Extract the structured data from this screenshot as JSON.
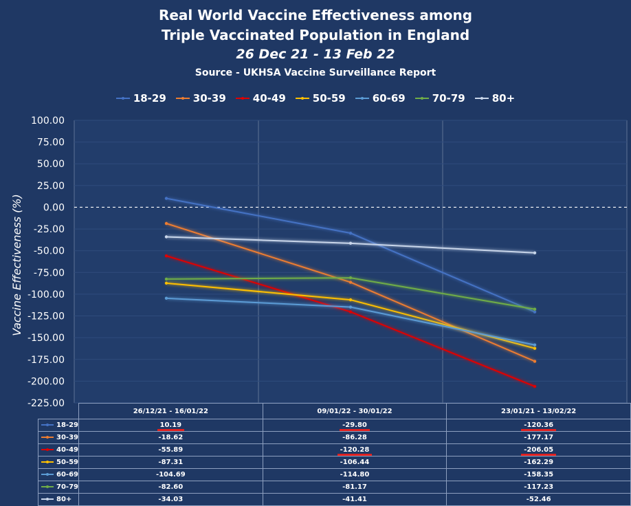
{
  "chart_data": {
    "type": "line",
    "title": "Real World Vaccine Effectiveness among Triple Vaccinated Population in England",
    "title_lines": [
      "Real World Vaccine Effectiveness among",
      "Triple Vaccinated Population in England"
    ],
    "subtitle": "26 Dec 21 - 13 Feb 22",
    "source": "Source - UKHSA Vaccine Surveillance Report",
    "xlabel": "",
    "ylabel": "Vaccine Effectiveness (%)",
    "ylim": [
      -225,
      100
    ],
    "yticks": [
      "100.00",
      "75.00",
      "50.00",
      "25.00",
      "0.00",
      "-25.00",
      "-50.00",
      "-75.00",
      "-100.00",
      "-125.00",
      "-150.00",
      "-175.00",
      "-200.00",
      "-225.00"
    ],
    "categories": [
      "26/12/21 - 16/01/22",
      "09/01/22 - 30/01/22",
      "23/01/21 - 13/02/22"
    ],
    "legend_position": "top",
    "grid": true,
    "series": [
      {
        "name": "18-29",
        "color": "#4472c4",
        "values": [
          10.19,
          -29.8,
          -120.36
        ],
        "display": [
          "10.19",
          "-29.80",
          "-120.36"
        ]
      },
      {
        "name": "30-39",
        "color": "#ed7d31",
        "values": [
          -18.62,
          -86.28,
          -177.17
        ],
        "display": [
          "-18.62",
          "-86.28",
          "-177.17"
        ]
      },
      {
        "name": "40-49",
        "color": "#e00000",
        "values": [
          -55.89,
          -120.28,
          -206.05
        ],
        "display": [
          "-55.89",
          "-120.28",
          "-206.05"
        ]
      },
      {
        "name": "50-59",
        "color": "#ffc000",
        "values": [
          -87.31,
          -106.44,
          -162.29
        ],
        "display": [
          "-87.31",
          "-106.44",
          "-162.29"
        ]
      },
      {
        "name": "60-69",
        "color": "#5b9bd5",
        "values": [
          -104.69,
          -114.8,
          -158.35
        ],
        "display": [
          "-104.69",
          "-114.80",
          "-158.35"
        ]
      },
      {
        "name": "70-79",
        "color": "#70ad47",
        "values": [
          -82.6,
          -81.17,
          -117.23
        ],
        "display": [
          "-82.60",
          "-81.17",
          "-117.23"
        ]
      },
      {
        "name": "80+",
        "color": "#c9d6ea",
        "values": [
          -34.03,
          -41.41,
          -52.46
        ],
        "display": [
          "-34.03",
          "-41.41",
          "-52.46"
        ]
      }
    ],
    "underlined_cells": {
      "18-29": [
        0,
        1,
        2
      ],
      "40-49": [
        1,
        2
      ]
    }
  }
}
